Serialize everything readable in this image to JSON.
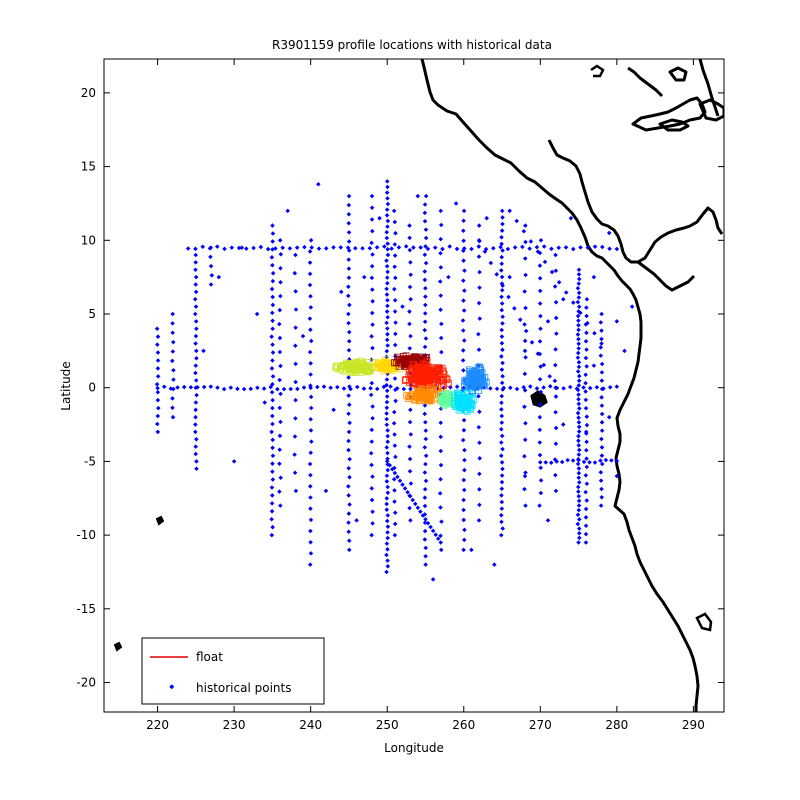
{
  "chart_data": {
    "type": "scatter",
    "title": "R3901159 profile locations with historical data",
    "xlabel": "Longitude",
    "ylabel": "Latitude",
    "xlim": [
      213,
      294
    ],
    "ylim": [
      -22,
      22.3
    ],
    "xticks": [
      220,
      230,
      240,
      250,
      260,
      270,
      280,
      290
    ],
    "yticks": [
      -20,
      -15,
      -10,
      -5,
      0,
      5,
      10,
      15,
      20
    ],
    "grid": false,
    "legend": {
      "placement": "bottom-left",
      "entries": [
        {
          "label": "float",
          "color": "#e00000",
          "marker": "line"
        },
        {
          "label": "historical points",
          "color": "#0000ff",
          "marker": "dot"
        }
      ]
    },
    "colors": {
      "historical": "#0000ff",
      "coast": "#000000",
      "float_line": "#ff0000"
    },
    "series": [
      {
        "name": "historical points",
        "color": "#0000ff",
        "lines": [
          {
            "kind": "lon",
            "at": 220,
            "from": -3,
            "to": 4,
            "n": 14
          },
          {
            "kind": "lon",
            "at": 222,
            "from": -2,
            "to": 5,
            "n": 12
          },
          {
            "kind": "lon",
            "at": 225,
            "from": -5.5,
            "to": 9,
            "n": 30
          },
          {
            "kind": "lon",
            "at": 227,
            "from": 7,
            "to": 9.5,
            "n": 5
          },
          {
            "kind": "lon",
            "at": 235,
            "from": -10,
            "to": 11,
            "n": 40
          },
          {
            "kind": "lon",
            "at": 236,
            "from": -8,
            "to": 10,
            "n": 20
          },
          {
            "kind": "lon",
            "at": 238,
            "from": -7,
            "to": 9,
            "n": 14
          },
          {
            "kind": "lon",
            "at": 240,
            "from": -12,
            "to": 10,
            "n": 30
          },
          {
            "kind": "lon",
            "at": 245,
            "from": -11,
            "to": 13,
            "n": 40
          },
          {
            "kind": "lon",
            "at": 248,
            "from": -10,
            "to": 13,
            "n": 30
          },
          {
            "kind": "lon",
            "at": 250,
            "from": -12.5,
            "to": 14,
            "n": 70
          },
          {
            "kind": "lon",
            "at": 251,
            "from": -10,
            "to": 12,
            "n": 30
          },
          {
            "kind": "lon",
            "at": 253,
            "from": -9,
            "to": 11,
            "n": 25
          },
          {
            "kind": "lon",
            "at": 255,
            "from": -12,
            "to": 13,
            "n": 45
          },
          {
            "kind": "lon",
            "at": 257,
            "from": -11,
            "to": 12,
            "n": 25
          },
          {
            "kind": "lon",
            "at": 260,
            "from": -11,
            "to": 12,
            "n": 35
          },
          {
            "kind": "lon",
            "at": 262,
            "from": -9,
            "to": 11,
            "n": 20
          },
          {
            "kind": "lon",
            "at": 265,
            "from": -10,
            "to": 12,
            "n": 50
          },
          {
            "kind": "lon",
            "at": 268,
            "from": -8,
            "to": 11,
            "n": 18
          },
          {
            "kind": "lon",
            "at": 270,
            "from": -8,
            "to": 10,
            "n": 22
          },
          {
            "kind": "lon",
            "at": 272,
            "from": -7,
            "to": 9,
            "n": 16
          },
          {
            "kind": "lon",
            "at": 275,
            "from": -10.5,
            "to": 8,
            "n": 60
          },
          {
            "kind": "lon",
            "at": 276,
            "from": -10.5,
            "to": 6,
            "n": 30
          },
          {
            "kind": "lon",
            "at": 278,
            "from": -8,
            "to": 5,
            "n": 24
          },
          {
            "kind": "lat",
            "at": 9.5,
            "from": 224,
            "to": 280,
            "n": 60
          },
          {
            "kind": "lat",
            "at": 0,
            "from": 220,
            "to": 280,
            "n": 70
          },
          {
            "kind": "lat",
            "at": -5,
            "from": 270,
            "to": 280,
            "n": 15
          }
        ],
        "diagonals": [
          {
            "from": [
              250,
              -5
            ],
            "to": [
              257,
              -10.5
            ],
            "n": 22
          },
          {
            "from": [
              262,
              10
            ],
            "to": [
              272,
              0
            ],
            "n": 14
          },
          {
            "from": [
              266,
              12
            ],
            "to": [
              278,
              3
            ],
            "n": 14
          }
        ],
        "points": [
          [
            230,
            -5
          ],
          [
            234,
            -1
          ],
          [
            241,
            13.8
          ],
          [
            243,
            -1.5
          ],
          [
            244,
            6.5
          ],
          [
            252,
            5.5
          ],
          [
            258,
            7.5
          ],
          [
            263,
            11.5
          ],
          [
            266,
            7.5
          ],
          [
            268,
            2.5
          ],
          [
            271,
            4.5
          ],
          [
            273,
            -2.5
          ],
          [
            274,
            11.5
          ],
          [
            277,
            7.5
          ],
          [
            279,
            10.5
          ],
          [
            280,
            4.5
          ],
          [
            281,
            2.5
          ],
          [
            282,
            5.5
          ],
          [
            279,
            -2
          ],
          [
            280,
            -6
          ],
          [
            276,
            -3
          ],
          [
            277,
            1.5
          ],
          [
            264,
            -12
          ],
          [
            261,
            -11
          ],
          [
            256,
            -13
          ],
          [
            246,
            -9
          ],
          [
            247,
            7.5
          ],
          [
            249,
            11.5
          ],
          [
            233,
            5
          ],
          [
            226,
            2.5
          ],
          [
            228,
            7.5
          ],
          [
            231,
            9.5
          ],
          [
            237,
            12
          ],
          [
            239,
            3.5
          ],
          [
            242,
            -7
          ],
          [
            254,
            13
          ],
          [
            259,
            12.5
          ],
          [
            268,
            -6
          ],
          [
            271,
            -9
          ],
          [
            273,
            6
          ]
        ]
      },
      {
        "name": "float",
        "colormap": "jet",
        "clusters": [
          {
            "center": [
              246,
              1.4
            ],
            "spread": [
              3,
              0.5
            ],
            "n": 120,
            "color": "#c8e628"
          },
          {
            "center": [
              250,
              1.5
            ],
            "spread": [
              2,
              0.5
            ],
            "n": 60,
            "color": "#ffd800"
          },
          {
            "center": [
              253,
              1.8
            ],
            "spread": [
              3,
              0.5
            ],
            "n": 100,
            "color": "#9a0000"
          },
          {
            "center": [
              255,
              0.8
            ],
            "spread": [
              3.5,
              1.1
            ],
            "n": 200,
            "color": "#ff2000"
          },
          {
            "center": [
              255,
              -0.5
            ],
            "spread": [
              3,
              0.6
            ],
            "n": 80,
            "color": "#ff8a00"
          },
          {
            "center": [
              258,
              -0.8
            ],
            "spread": [
              1.5,
              0.6
            ],
            "n": 50,
            "color": "#64ff9a"
          },
          {
            "center": [
              260,
              -1
            ],
            "spread": [
              2,
              0.9
            ],
            "n": 80,
            "color": "#00e0ff"
          },
          {
            "center": [
              261.5,
              0.7
            ],
            "spread": [
              1.8,
              1.2
            ],
            "n": 100,
            "color": "#1c8cff"
          }
        ]
      }
    ]
  }
}
